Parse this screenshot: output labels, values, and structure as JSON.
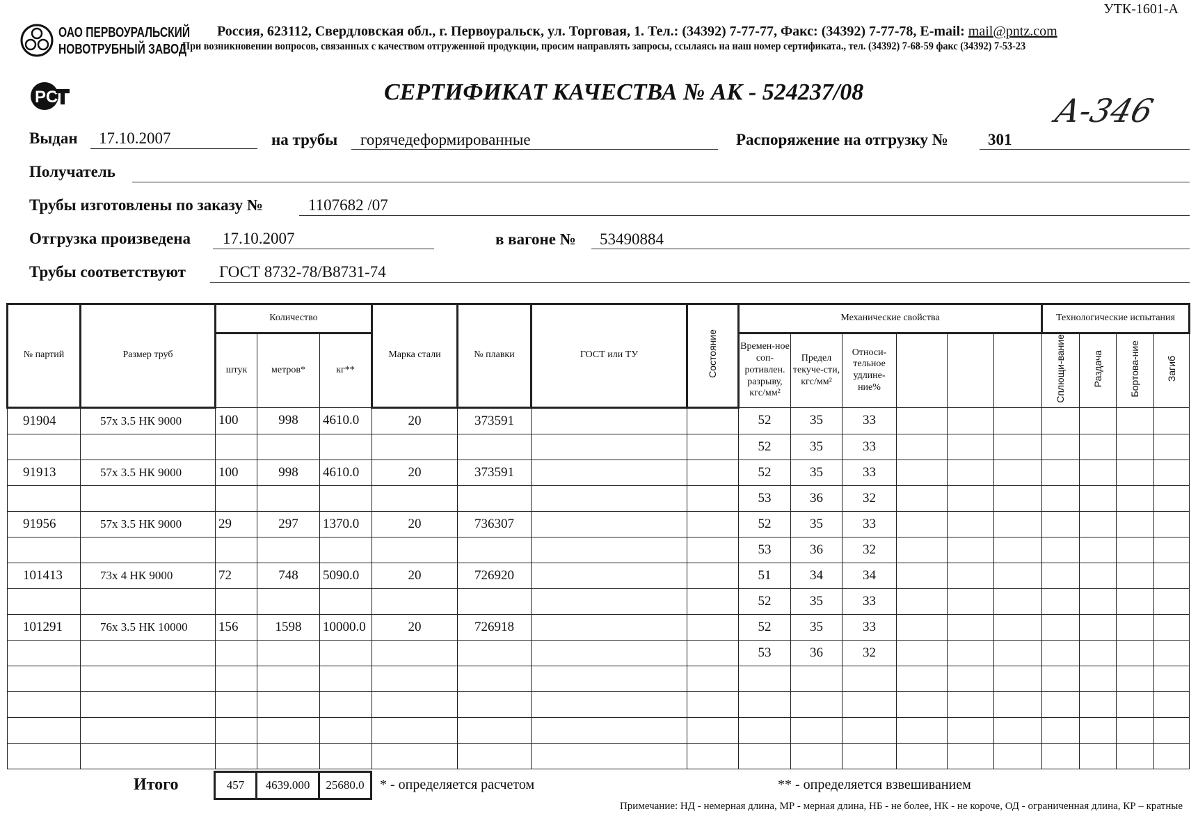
{
  "form_code": "УТК-1601-А",
  "company": {
    "line1": "ОАО ПЕРВОУРАЛЬСКИЙ",
    "line2": "НОВОТРУБНЫЙ ЗАВОД"
  },
  "address": "Россия, 623112, Свердловская обл., г. Первоуральск, ул. Торговая, 1. Тел.: (34392) 7-77-77, Факс: (34392) 7-77-78,  E-mail: ",
  "email": "mail@pntz.com",
  "notice": "При возникновении вопросов, связанных с качеством отгруженной продукции, просим направлять запросы, ссылаясь на наш номер сертификата., тел. (34392) 7-68-59 факс (34392) 7-53-23",
  "cert_logo": "РСТ",
  "title": "СЕРТИФИКАТ КАЧЕСТВА   №  АК -  524237/08",
  "handwritten": "А-346",
  "fields": {
    "issued_label": "Выдан",
    "issued": "17.10.2007",
    "pipes_label": "на трубы",
    "pipes": "горячедеформированные",
    "order_label": "Распоряжение на отгрузку №",
    "order": "301",
    "recipient_label": "Получатель",
    "recipient": "",
    "made_label": "Трубы изготовлены по заказу №",
    "made": "1107682   /07",
    "shipped_label": "Отгрузка произведена",
    "shipped": "17.10.2007",
    "wagon_label": "в вагоне №",
    "wagon": "53490884",
    "conform_label": "Трубы соответствуют",
    "conform": "ГОСТ 8732-78/В8731-74"
  },
  "table": {
    "headers": {
      "batch": "№ партий",
      "size": "Размер труб",
      "qty": "Количество",
      "pcs": "штук",
      "m": "метров*",
      "kg": "кг**",
      "steel": "Марка стали",
      "heat": "№ плавки",
      "gost": "ГОСТ или ТУ",
      "state": "Состояние",
      "mech": "Механические свойства",
      "tensile": "Времен-ное соп-ротивлен. разрыву, кгс/мм²",
      "yield": "Предел текуче-сти, кгс/мм²",
      "elong": "Относи-тельное удлине-ние%",
      "tech": "Технологические испытания",
      "flat": "Сплющи-вание",
      "expand": "Раздача",
      "flange": "Бортова-ние",
      "bend": "Загиб"
    },
    "rows": [
      [
        "91904",
        "57х 3.5 НК 9000",
        "100",
        "998",
        "4610.0",
        "20",
        "373591",
        "52",
        "35",
        "33"
      ],
      [
        "",
        "",
        "",
        "",
        "",
        "",
        "",
        "52",
        "35",
        "33"
      ],
      [
        "91913",
        "57х 3.5 НК 9000",
        "100",
        "998",
        "4610.0",
        "20",
        "373591",
        "52",
        "35",
        "33"
      ],
      [
        "",
        "",
        "",
        "",
        "",
        "",
        "",
        "53",
        "36",
        "32"
      ],
      [
        "91956",
        "57х 3.5 НК 9000",
        "29",
        "297",
        "1370.0",
        "20",
        "736307",
        "52",
        "35",
        "33"
      ],
      [
        "",
        "",
        "",
        "",
        "",
        "",
        "",
        "53",
        "36",
        "32"
      ],
      [
        "101413",
        "73х 4 НК 9000",
        "72",
        "748",
        "5090.0",
        "20",
        "726920",
        "51",
        "34",
        "34"
      ],
      [
        "",
        "",
        "",
        "",
        "",
        "",
        "",
        "52",
        "35",
        "33"
      ],
      [
        "101291",
        "76х 3.5 НК 10000",
        "156",
        "1598",
        "10000.0",
        "20",
        "726918",
        "52",
        "35",
        "33"
      ],
      [
        "",
        "",
        "",
        "",
        "",
        "",
        "",
        "53",
        "36",
        "32"
      ],
      [
        "",
        "",
        "",
        "",
        "",
        "",
        "",
        "",
        "",
        ""
      ],
      [
        "",
        "",
        "",
        "",
        "",
        "",
        "",
        "",
        "",
        ""
      ],
      [
        "",
        "",
        "",
        "",
        "",
        "",
        "",
        "",
        "",
        ""
      ],
      [
        "",
        "",
        "",
        "",
        "",
        "",
        "",
        "",
        "",
        ""
      ]
    ],
    "total_label": "Итого",
    "total": {
      "pcs": "457",
      "m": "4639.000",
      "kg": "25680.0"
    }
  },
  "footnote1": "* - определяется расчетом",
  "footnote2": "** - определяется взвешиванием",
  "note": "Примечание: НД - немерная длина, МР - мерная длина, НБ - не более, НК - не короче, ОД - ограниченная длина, КР – кратные"
}
